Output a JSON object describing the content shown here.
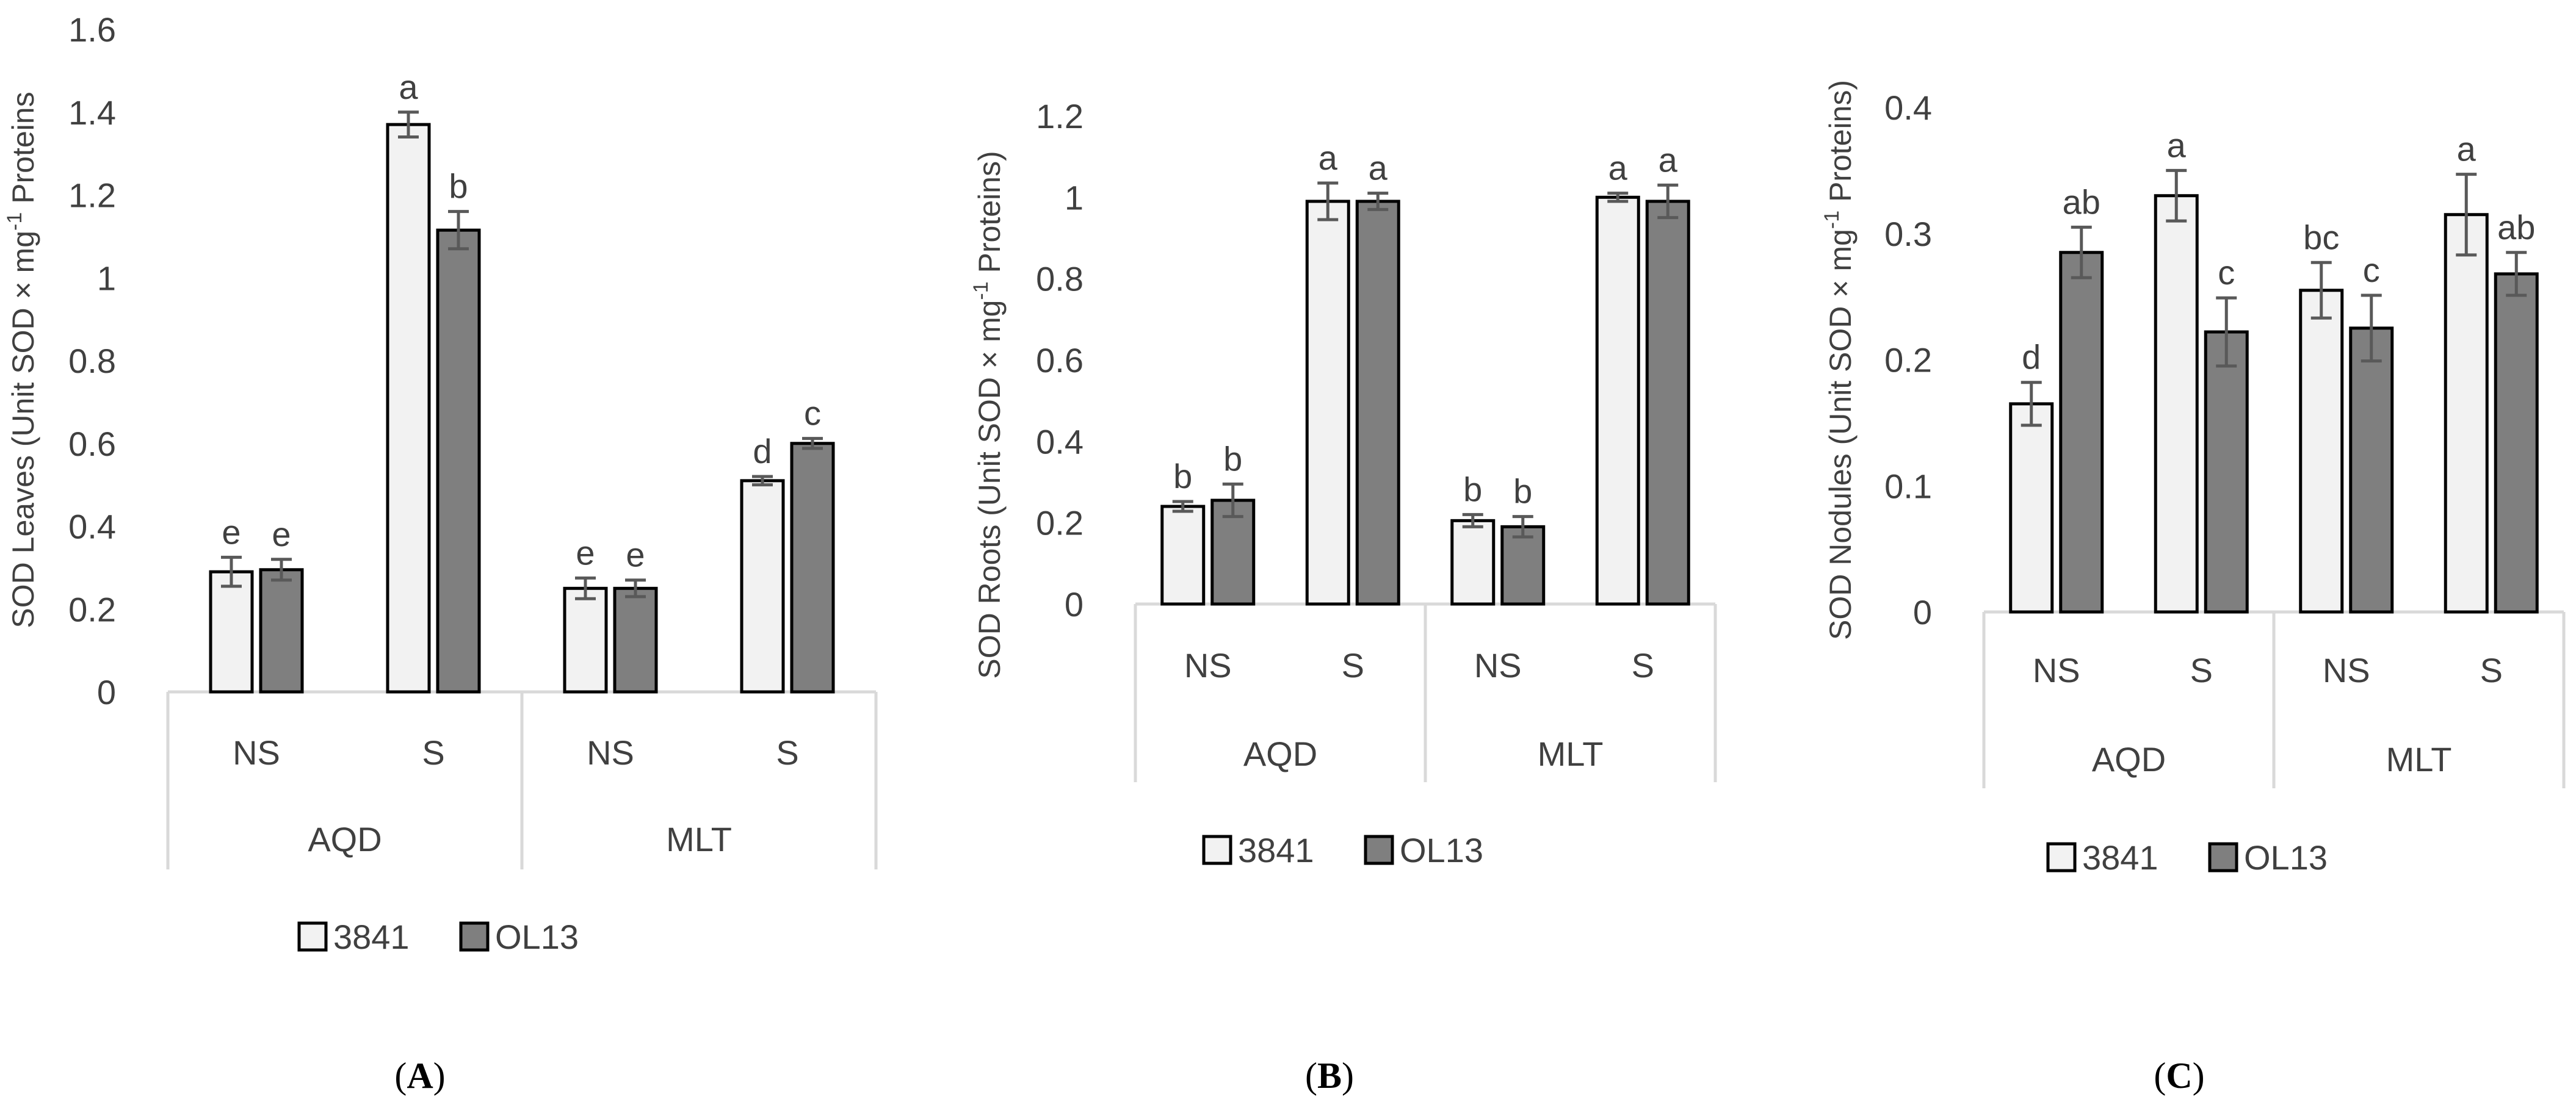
{
  "colors": {
    "series_3841": "#f2f2f2",
    "series_OL13": "#7f7f7f",
    "bar_outline": "#000000",
    "error_bar": "#595959",
    "axis_line": "#d9d9d9",
    "text": "#404040"
  },
  "legend": {
    "items": [
      "3841",
      "OL13"
    ]
  },
  "chart_data": [
    {
      "type": "bar",
      "panel_label": "A",
      "ylabel": "SOD Leaves  (Unit SOD × mg",
      "ylabel_sup": "-1",
      "ylabel_tail": " Proteins",
      "ylim": [
        0,
        1.6
      ],
      "yticks": [
        0,
        0.2,
        0.4,
        0.6,
        0.8,
        1,
        1.2,
        1.4,
        1.6
      ],
      "ytick_labels": [
        "0",
        "0.2",
        "0.4",
        "0.6",
        "0.8",
        "1",
        "1.2",
        "1.4",
        "1.6"
      ],
      "groups": [
        {
          "name": "AQD",
          "categories": [
            "NS",
            "S"
          ]
        },
        {
          "name": "MLT",
          "categories": [
            "NS",
            "S"
          ]
        }
      ],
      "series": [
        {
          "name": "3841",
          "values": [
            0.29,
            1.37,
            0.25,
            0.51
          ],
          "errors": [
            0.035,
            0.03,
            0.025,
            0.01
          ],
          "letters": [
            "e",
            "a",
            "e",
            "d"
          ]
        },
        {
          "name": "OL13",
          "values": [
            0.295,
            1.115,
            0.25,
            0.6
          ],
          "errors": [
            0.025,
            0.045,
            0.02,
            0.012
          ],
          "letters": [
            "e",
            "b",
            "e",
            "c"
          ]
        }
      ]
    },
    {
      "type": "bar",
      "panel_label": "B",
      "ylabel": "SOD Roots  (Unit SOD × mg",
      "ylabel_sup": "-1",
      "ylabel_tail": " Proteins)",
      "ylim": [
        0,
        1.2
      ],
      "yticks": [
        0,
        0.2,
        0.4,
        0.6,
        0.8,
        1,
        1.2
      ],
      "ytick_labels": [
        "0",
        "0.2",
        "0.4",
        "0.6",
        "0.8",
        "1",
        "1.2"
      ],
      "groups": [
        {
          "name": "AQD",
          "categories": [
            "NS",
            "S"
          ]
        },
        {
          "name": "MLT",
          "categories": [
            "NS",
            "S"
          ]
        }
      ],
      "series": [
        {
          "name": "3841",
          "values": [
            0.24,
            0.99,
            0.205,
            1.0
          ],
          "errors": [
            0.012,
            0.045,
            0.015,
            0.01
          ],
          "letters": [
            "b",
            "a",
            "b",
            "a"
          ]
        },
        {
          "name": "OL13",
          "values": [
            0.255,
            0.99,
            0.19,
            0.99
          ],
          "errors": [
            0.04,
            0.02,
            0.025,
            0.04
          ],
          "letters": [
            "b",
            "a",
            "b",
            "a"
          ]
        }
      ]
    },
    {
      "type": "bar",
      "panel_label": "C",
      "ylabel": "SOD Nodules  (Unit SOD × mg",
      "ylabel_sup": "-1",
      "ylabel_tail": " Proteins)",
      "ylim": [
        0,
        0.4
      ],
      "yticks": [
        0,
        0.1,
        0.2,
        0.3,
        0.4
      ],
      "ytick_labels": [
        "0",
        "0.1",
        "0.2",
        "0.3",
        "0.4"
      ],
      "groups": [
        {
          "name": "AQD",
          "categories": [
            "NS",
            "S"
          ]
        },
        {
          "name": "MLT",
          "categories": [
            "NS",
            "S"
          ]
        }
      ],
      "series": [
        {
          "name": "3841",
          "values": [
            0.165,
            0.33,
            0.255,
            0.315
          ],
          "errors": [
            0.017,
            0.02,
            0.022,
            0.032
          ],
          "letters": [
            "d",
            "a",
            "bc",
            "a"
          ]
        },
        {
          "name": "OL13",
          "values": [
            0.285,
            0.222,
            0.225,
            0.268
          ],
          "errors": [
            0.02,
            0.027,
            0.026,
            0.017
          ],
          "letters": [
            "ab",
            "c",
            "c",
            "ab"
          ]
        }
      ]
    }
  ]
}
